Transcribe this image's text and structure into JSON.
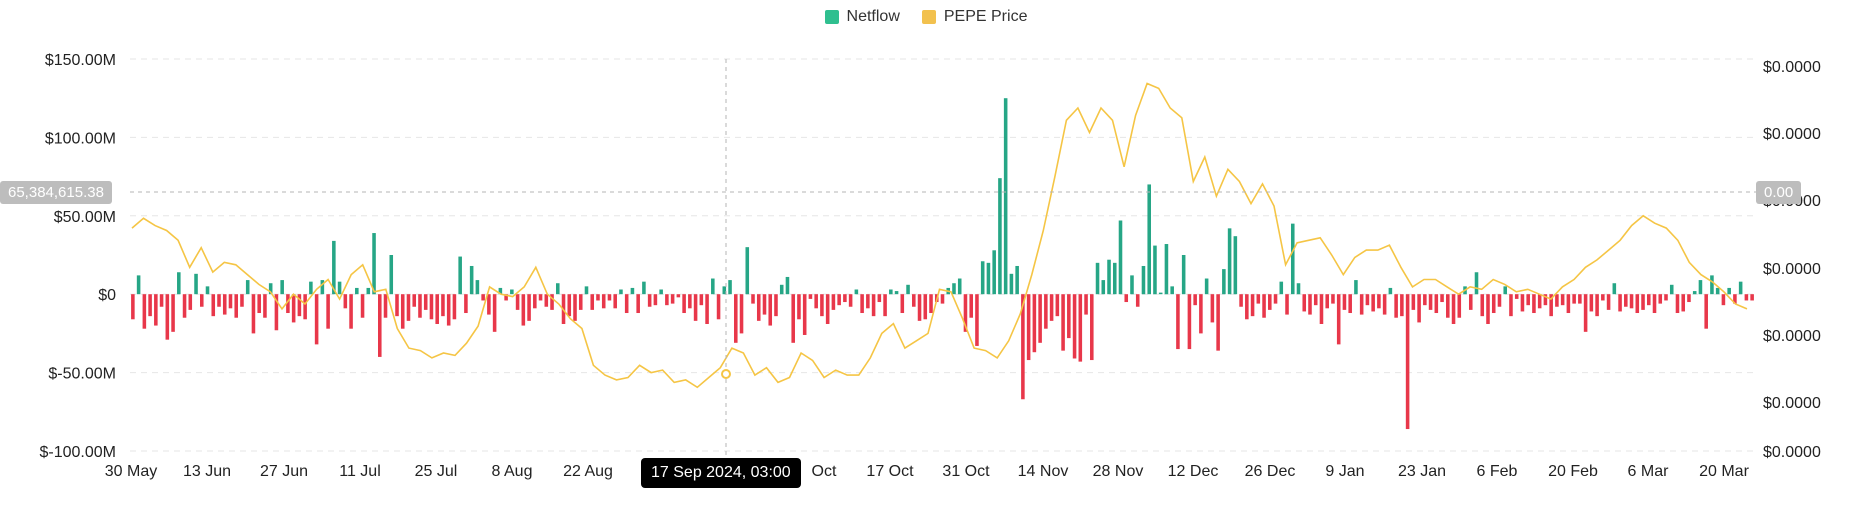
{
  "legend": {
    "netflow_label": "Netflow",
    "price_label": "PEPE Price",
    "netflow_color": "#2fbf8f",
    "price_color": "#f2c14e"
  },
  "colors": {
    "positive": "#26a686",
    "negative": "#e8374a",
    "price_line": "#f5c545",
    "grid": "#e6e6e6",
    "crosshair": "#b5b5b5"
  },
  "crosshair": {
    "left_value": "65,384,615.38",
    "right_value": "0.00",
    "date_label": "17 Sep 2024, 03:00"
  },
  "chart_data": {
    "type": "bar",
    "left_axis": {
      "ticks": [
        "$150.00M",
        "$100.00M",
        "$50.00M",
        "$0",
        "$-50.00M",
        "$-100.00M"
      ],
      "values": [
        150,
        100,
        50,
        0,
        -50,
        -100
      ],
      "ylim": [
        -100,
        150
      ]
    },
    "right_axis": {
      "ticks": [
        "$0.0000",
        "$0.0000",
        "$0.0000",
        "$0.0000",
        "$0.0000",
        "$0.0000",
        "$0.0000"
      ]
    },
    "x_ticks": [
      "30 May",
      "13 Jun",
      "27 Jun",
      "11 Jul",
      "25 Jul",
      "8 Aug",
      "22 Aug",
      "Oct",
      "17 Oct",
      "31 Oct",
      "14 Nov",
      "28 Nov",
      "12 Dec",
      "26 Dec",
      "9 Jan",
      "23 Jan",
      "6 Feb",
      "20 Feb",
      "6 Mar",
      "20 Mar"
    ],
    "series": [
      {
        "name": "Netflow",
        "values": [
          -16,
          12,
          -22,
          -14,
          -20,
          -8,
          -29,
          -24,
          14,
          -15,
          -10,
          13,
          -8,
          5,
          -14,
          -8,
          -13,
          -9,
          -15,
          -8,
          9,
          -25,
          -12,
          -15,
          7,
          -23,
          9,
          -12,
          -18,
          -14,
          -16,
          8,
          -32,
          9,
          -22,
          34,
          8,
          -9,
          -22,
          4,
          -15,
          4,
          39,
          -40,
          -15,
          25,
          -14,
          -22,
          -17,
          -8,
          -15,
          -10,
          -16,
          -19,
          -14,
          -20,
          -16,
          24,
          -12,
          18,
          9,
          -4,
          -13,
          -24,
          4,
          -4,
          3,
          -10,
          -20,
          -17,
          -9,
          -4,
          -8,
          -10,
          7,
          -19,
          -14,
          -17,
          -10,
          5,
          -10,
          -4,
          -9,
          -4,
          -9,
          3,
          -12,
          4,
          -12,
          8,
          -8,
          -7,
          3,
          -7,
          -6,
          -2,
          -12,
          -9,
          -17,
          -7,
          -19,
          10,
          -16,
          5,
          9,
          -31,
          -25,
          30,
          -6,
          -17,
          -13,
          -20,
          -14,
          6,
          11,
          -31,
          -16,
          -26,
          -3,
          -9,
          -14,
          -19,
          -10,
          -7,
          -5,
          -8,
          3,
          -12,
          -9,
          -14,
          -5,
          -14,
          3,
          2,
          -12,
          6,
          -8,
          -17,
          -16,
          -12,
          -5,
          -6,
          4,
          7,
          10,
          -24,
          -15,
          -33,
          21,
          20,
          28,
          74,
          125,
          13,
          18,
          -67,
          -42,
          -37,
          -31,
          -22,
          -17,
          -14,
          -36,
          -28,
          -41,
          -43,
          -13,
          -42,
          20,
          9,
          22,
          20,
          47,
          -5,
          12,
          -8,
          18,
          70,
          31,
          1,
          32,
          5,
          -35,
          25,
          -35,
          -7,
          -25,
          10,
          -18,
          -36,
          16,
          42,
          37,
          -8,
          -16,
          -14,
          -6,
          -15,
          -10,
          -6,
          8,
          -13,
          45,
          7,
          -11,
          -13,
          -7,
          -19,
          -9,
          -6,
          -32,
          -10,
          -12,
          9,
          -13,
          -7,
          -11,
          -9,
          -13,
          4,
          -15,
          -14,
          -86,
          -10,
          -18,
          -7,
          -10,
          -12,
          -5,
          -15,
          -19,
          -15,
          5,
          -10,
          14,
          -14,
          -19,
          -12,
          -8,
          5,
          -14,
          -3,
          -11,
          -7,
          -12,
          -9,
          -7,
          -14,
          -8,
          -7,
          -12,
          -6,
          -6,
          -24,
          -11,
          -14,
          -4,
          -10,
          7,
          -11,
          -8,
          -9,
          -12,
          -10,
          -7,
          -12,
          -6,
          -4,
          6,
          -12,
          -11,
          -5,
          2,
          9,
          -22,
          12,
          4,
          -7,
          4,
          -6,
          8,
          -4,
          -4
        ]
      },
      {
        "name": "PEPE Price",
        "values": [
          71,
          75,
          72,
          70,
          66,
          55,
          63,
          53,
          57,
          56,
          52,
          48,
          45,
          38,
          44,
          40,
          46,
          50,
          42,
          52,
          56,
          45,
          46,
          30,
          22,
          21,
          18,
          20,
          19,
          24,
          31,
          47,
          44,
          43,
          47,
          55,
          44,
          40,
          34,
          30,
          15,
          11,
          9,
          10,
          15,
          12,
          13,
          8,
          9,
          6,
          10,
          14,
          22,
          20,
          11,
          14,
          8,
          10,
          20,
          17,
          10,
          13,
          11,
          11,
          18,
          28,
          32,
          22,
          25,
          28,
          46,
          45,
          34,
          22,
          21,
          18,
          25,
          36,
          52,
          70,
          92,
          115,
          120,
          110,
          120,
          115,
          96,
          117,
          130,
          128,
          120,
          116,
          90,
          100,
          84,
          95,
          90,
          81,
          89,
          80,
          56,
          65,
          66,
          67,
          60,
          52,
          59,
          62,
          62,
          64,
          55,
          47,
          50,
          50,
          47,
          44,
          47,
          46,
          50,
          48,
          45,
          46,
          44,
          42,
          47,
          50,
          55,
          58,
          62,
          66,
          72,
          76,
          73,
          71,
          66,
          57,
          52,
          49,
          45,
          40,
          38
        ]
      }
    ]
  }
}
